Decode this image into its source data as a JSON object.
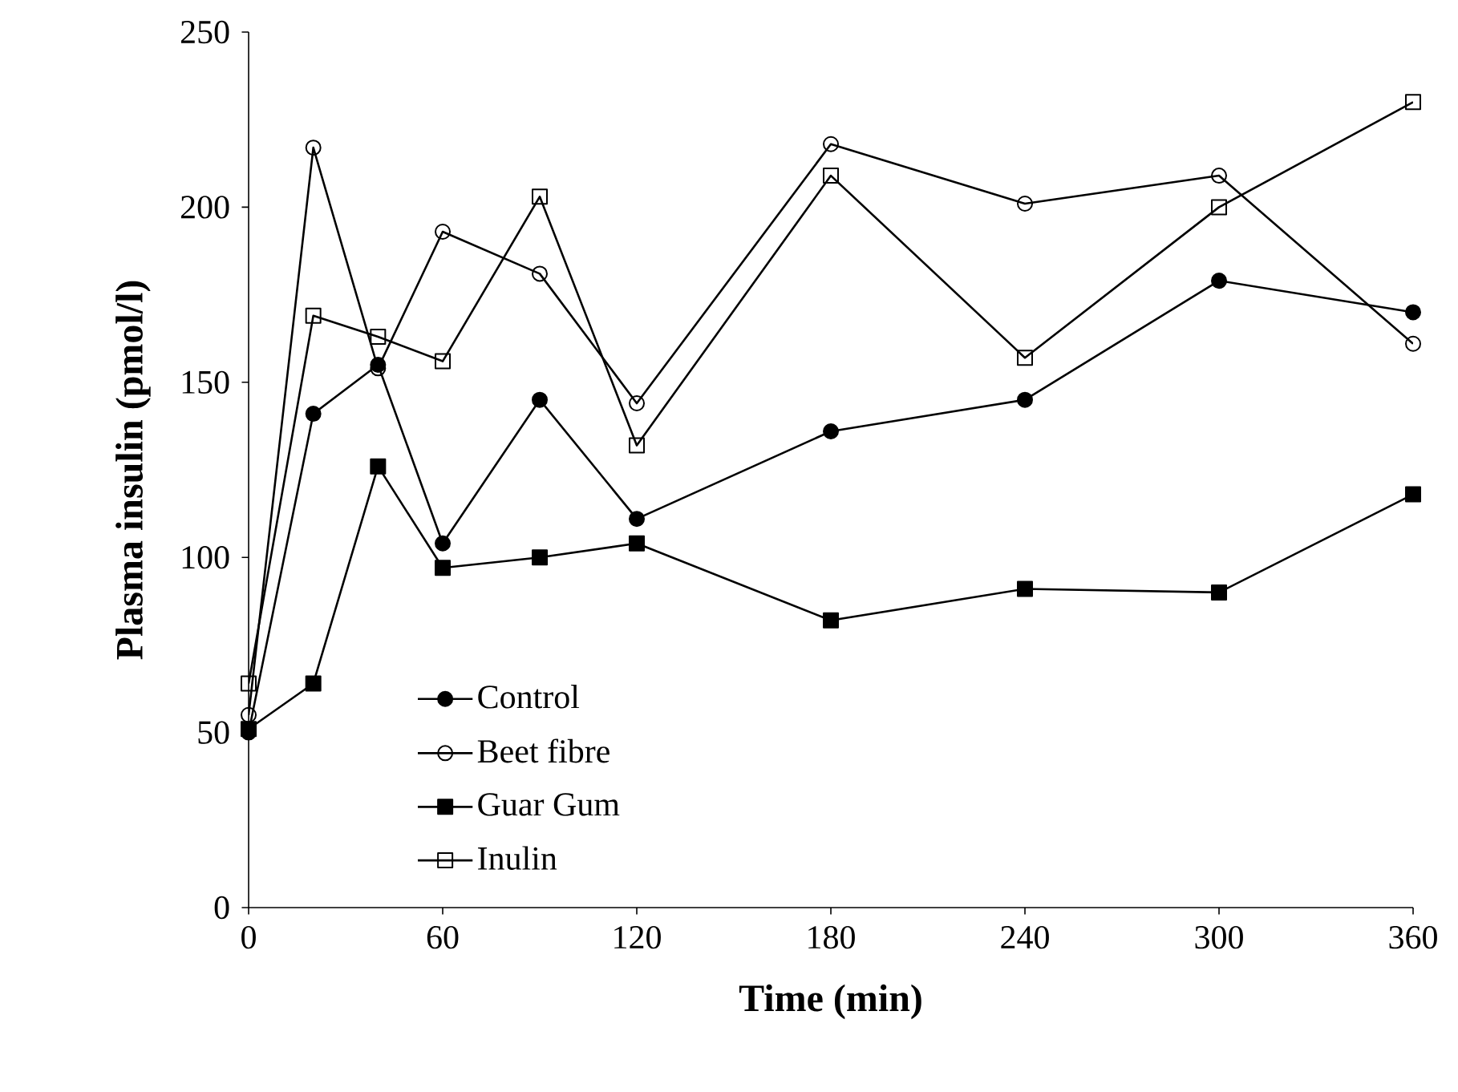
{
  "chart_data": {
    "type": "line",
    "xlabel": "Time (min)",
    "ylabel": "Plasma insulin (pmol/l)",
    "x": [
      0,
      20,
      40,
      60,
      90,
      120,
      180,
      240,
      300,
      360
    ],
    "series": [
      {
        "name": "Control",
        "color": "#000000",
        "marker": "circle_filled",
        "values": [
          50,
          141,
          155,
          104,
          145,
          111,
          136,
          145,
          179,
          170
        ]
      },
      {
        "name": "Beet fibre",
        "color": "#000000",
        "marker": "circle",
        "values": [
          55,
          217,
          154,
          193,
          181,
          144,
          218,
          201,
          209,
          161
        ]
      },
      {
        "name": "Guar Gum",
        "color": "#000000",
        "marker": "square_filled",
        "values": [
          51,
          64,
          126,
          97,
          100,
          104,
          82,
          91,
          90,
          118
        ]
      },
      {
        "name": "Inulin",
        "color": "#000000",
        "marker": "square",
        "values": [
          64,
          169,
          163,
          156,
          203,
          132,
          209,
          157,
          200,
          230
        ]
      }
    ],
    "xlim": [
      0,
      360
    ],
    "xticks": [
      0,
      60,
      120,
      180,
      240,
      300,
      360
    ],
    "ylim": [
      0,
      250
    ],
    "yticks": [
      0,
      50,
      100,
      150,
      200,
      250
    ],
    "grid": false,
    "legend": "bottom left",
    "line_style": "solid"
  }
}
